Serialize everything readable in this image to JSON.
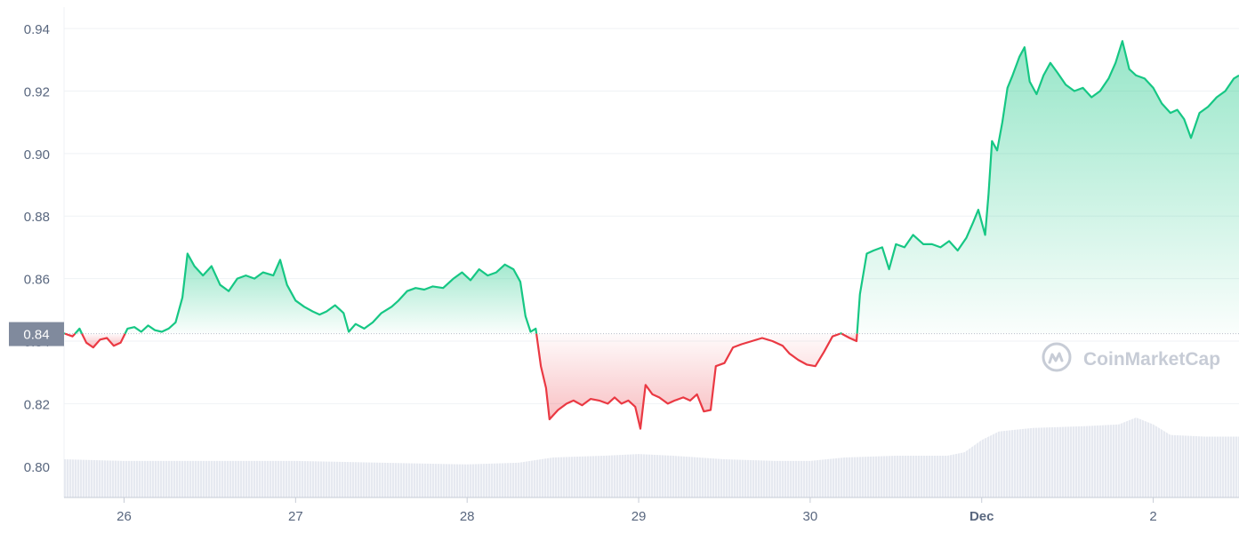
{
  "chart_data": {
    "type": "area",
    "x_start": "Nov 25 15:00",
    "x_end": "Dec 2 15:00",
    "ylim": [
      0.79,
      0.944
    ],
    "yticks": [
      "0.80",
      "0.82",
      "0.84",
      "0.86",
      "0.88",
      "0.90",
      "0.92",
      "0.94"
    ],
    "xticks": [
      {
        "label": "26",
        "day": 26.0,
        "bold": false
      },
      {
        "label": "27",
        "day": 27.0,
        "bold": false
      },
      {
        "label": "28",
        "day": 28.0,
        "bold": false
      },
      {
        "label": "29",
        "day": 29.0,
        "bold": false
      },
      {
        "label": "30",
        "day": 30.0,
        "bold": false
      },
      {
        "label": "Dec",
        "day": 31.0,
        "bold": true
      },
      {
        "label": "2",
        "day": 32.0,
        "bold": false
      }
    ],
    "baseline": 0.8424,
    "baseline_label": "0.84",
    "colors": {
      "up": "#16c784",
      "down": "#ea3943",
      "volume": "#e3e6ef",
      "grid": "#eff2f5"
    },
    "price": [
      [
        25.65,
        0.8425
      ],
      [
        25.7,
        0.8415
      ],
      [
        25.74,
        0.844
      ],
      [
        25.78,
        0.8395
      ],
      [
        25.82,
        0.838
      ],
      [
        25.86,
        0.8405
      ],
      [
        25.9,
        0.841
      ],
      [
        25.94,
        0.8385
      ],
      [
        25.98,
        0.8395
      ],
      [
        26.02,
        0.844
      ],
      [
        26.06,
        0.8445
      ],
      [
        26.1,
        0.843
      ],
      [
        26.14,
        0.845
      ],
      [
        26.18,
        0.8435
      ],
      [
        26.22,
        0.843
      ],
      [
        26.26,
        0.844
      ],
      [
        26.3,
        0.846
      ],
      [
        26.34,
        0.854
      ],
      [
        26.37,
        0.868
      ],
      [
        26.41,
        0.864
      ],
      [
        26.46,
        0.861
      ],
      [
        26.51,
        0.864
      ],
      [
        26.56,
        0.858
      ],
      [
        26.61,
        0.856
      ],
      [
        26.66,
        0.86
      ],
      [
        26.71,
        0.861
      ],
      [
        26.76,
        0.86
      ],
      [
        26.81,
        0.862
      ],
      [
        26.87,
        0.861
      ],
      [
        26.91,
        0.866
      ],
      [
        26.95,
        0.858
      ],
      [
        27.0,
        0.853
      ],
      [
        27.05,
        0.851
      ],
      [
        27.1,
        0.8495
      ],
      [
        27.14,
        0.8485
      ],
      [
        27.18,
        0.8495
      ],
      [
        27.23,
        0.8515
      ],
      [
        27.28,
        0.849
      ],
      [
        27.31,
        0.843
      ],
      [
        27.35,
        0.8455
      ],
      [
        27.4,
        0.844
      ],
      [
        27.45,
        0.846
      ],
      [
        27.5,
        0.849
      ],
      [
        27.56,
        0.851
      ],
      [
        27.6,
        0.853
      ],
      [
        27.65,
        0.856
      ],
      [
        27.7,
        0.857
      ],
      [
        27.75,
        0.8565
      ],
      [
        27.8,
        0.8575
      ],
      [
        27.86,
        0.857
      ],
      [
        27.92,
        0.86
      ],
      [
        27.97,
        0.862
      ],
      [
        28.02,
        0.8595
      ],
      [
        28.07,
        0.863
      ],
      [
        28.12,
        0.861
      ],
      [
        28.17,
        0.862
      ],
      [
        28.22,
        0.8645
      ],
      [
        28.27,
        0.863
      ],
      [
        28.31,
        0.859
      ],
      [
        28.34,
        0.848
      ],
      [
        28.37,
        0.843
      ],
      [
        28.4,
        0.844
      ],
      [
        28.43,
        0.832
      ],
      [
        28.46,
        0.825
      ],
      [
        28.48,
        0.815
      ],
      [
        28.53,
        0.818
      ],
      [
        28.58,
        0.82
      ],
      [
        28.62,
        0.821
      ],
      [
        28.67,
        0.8195
      ],
      [
        28.72,
        0.8215
      ],
      [
        28.77,
        0.821
      ],
      [
        28.82,
        0.82
      ],
      [
        28.86,
        0.822
      ],
      [
        28.9,
        0.82
      ],
      [
        28.94,
        0.821
      ],
      [
        28.98,
        0.819
      ],
      [
        29.01,
        0.812
      ],
      [
        29.04,
        0.826
      ],
      [
        29.08,
        0.823
      ],
      [
        29.12,
        0.822
      ],
      [
        29.17,
        0.82
      ],
      [
        29.21,
        0.821
      ],
      [
        29.26,
        0.822
      ],
      [
        29.3,
        0.821
      ],
      [
        29.34,
        0.823
      ],
      [
        29.38,
        0.8175
      ],
      [
        29.42,
        0.818
      ],
      [
        29.45,
        0.832
      ],
      [
        29.5,
        0.833
      ],
      [
        29.55,
        0.838
      ],
      [
        29.6,
        0.839
      ],
      [
        29.66,
        0.84
      ],
      [
        29.72,
        0.841
      ],
      [
        29.78,
        0.84
      ],
      [
        29.84,
        0.8385
      ],
      [
        29.88,
        0.836
      ],
      [
        29.93,
        0.834
      ],
      [
        29.98,
        0.8325
      ],
      [
        30.03,
        0.832
      ],
      [
        30.08,
        0.8365
      ],
      [
        30.13,
        0.8415
      ],
      [
        30.18,
        0.8425
      ],
      [
        30.23,
        0.841
      ],
      [
        30.27,
        0.84
      ],
      [
        30.29,
        0.855
      ],
      [
        30.33,
        0.868
      ],
      [
        30.37,
        0.869
      ],
      [
        30.42,
        0.87
      ],
      [
        30.46,
        0.863
      ],
      [
        30.5,
        0.871
      ],
      [
        30.55,
        0.87
      ],
      [
        30.6,
        0.874
      ],
      [
        30.66,
        0.871
      ],
      [
        30.71,
        0.871
      ],
      [
        30.76,
        0.87
      ],
      [
        30.81,
        0.872
      ],
      [
        30.86,
        0.869
      ],
      [
        30.91,
        0.873
      ],
      [
        30.95,
        0.878
      ],
      [
        30.98,
        0.882
      ],
      [
        31.02,
        0.874
      ],
      [
        31.04,
        0.887
      ],
      [
        31.06,
        0.904
      ],
      [
        31.09,
        0.901
      ],
      [
        31.12,
        0.91
      ],
      [
        31.15,
        0.921
      ],
      [
        31.18,
        0.925
      ],
      [
        31.22,
        0.931
      ],
      [
        31.25,
        0.934
      ],
      [
        31.28,
        0.923
      ],
      [
        31.32,
        0.919
      ],
      [
        31.36,
        0.925
      ],
      [
        31.4,
        0.929
      ],
      [
        31.44,
        0.926
      ],
      [
        31.49,
        0.922
      ],
      [
        31.54,
        0.92
      ],
      [
        31.59,
        0.921
      ],
      [
        31.64,
        0.918
      ],
      [
        31.69,
        0.92
      ],
      [
        31.74,
        0.924
      ],
      [
        31.78,
        0.929
      ],
      [
        31.82,
        0.936
      ],
      [
        31.86,
        0.927
      ],
      [
        31.9,
        0.925
      ],
      [
        31.95,
        0.924
      ],
      [
        32.0,
        0.921
      ],
      [
        32.05,
        0.916
      ],
      [
        32.1,
        0.913
      ],
      [
        32.14,
        0.914
      ],
      [
        32.18,
        0.911
      ],
      [
        32.22,
        0.905
      ],
      [
        32.27,
        0.913
      ],
      [
        32.32,
        0.915
      ],
      [
        32.37,
        0.918
      ],
      [
        32.42,
        0.92
      ],
      [
        32.47,
        0.924
      ],
      [
        32.5,
        0.925
      ]
    ],
    "volume": [
      [
        25.65,
        0.22
      ],
      [
        26.0,
        0.21
      ],
      [
        26.5,
        0.21
      ],
      [
        27.0,
        0.21
      ],
      [
        27.5,
        0.2
      ],
      [
        28.0,
        0.19
      ],
      [
        28.3,
        0.2
      ],
      [
        28.5,
        0.23
      ],
      [
        28.8,
        0.24
      ],
      [
        29.0,
        0.25
      ],
      [
        29.2,
        0.24
      ],
      [
        29.5,
        0.22
      ],
      [
        29.8,
        0.21
      ],
      [
        30.0,
        0.21
      ],
      [
        30.2,
        0.23
      ],
      [
        30.5,
        0.24
      ],
      [
        30.8,
        0.24
      ],
      [
        30.9,
        0.26
      ],
      [
        31.0,
        0.33
      ],
      [
        31.1,
        0.38
      ],
      [
        31.3,
        0.4
      ],
      [
        31.6,
        0.41
      ],
      [
        31.8,
        0.42
      ],
      [
        31.9,
        0.46
      ],
      [
        32.0,
        0.42
      ],
      [
        32.1,
        0.36
      ],
      [
        32.3,
        0.35
      ],
      [
        32.5,
        0.35
      ]
    ]
  },
  "watermark": {
    "text": "CoinMarketCap",
    "icon": "coinmarketcap-logo-icon"
  }
}
